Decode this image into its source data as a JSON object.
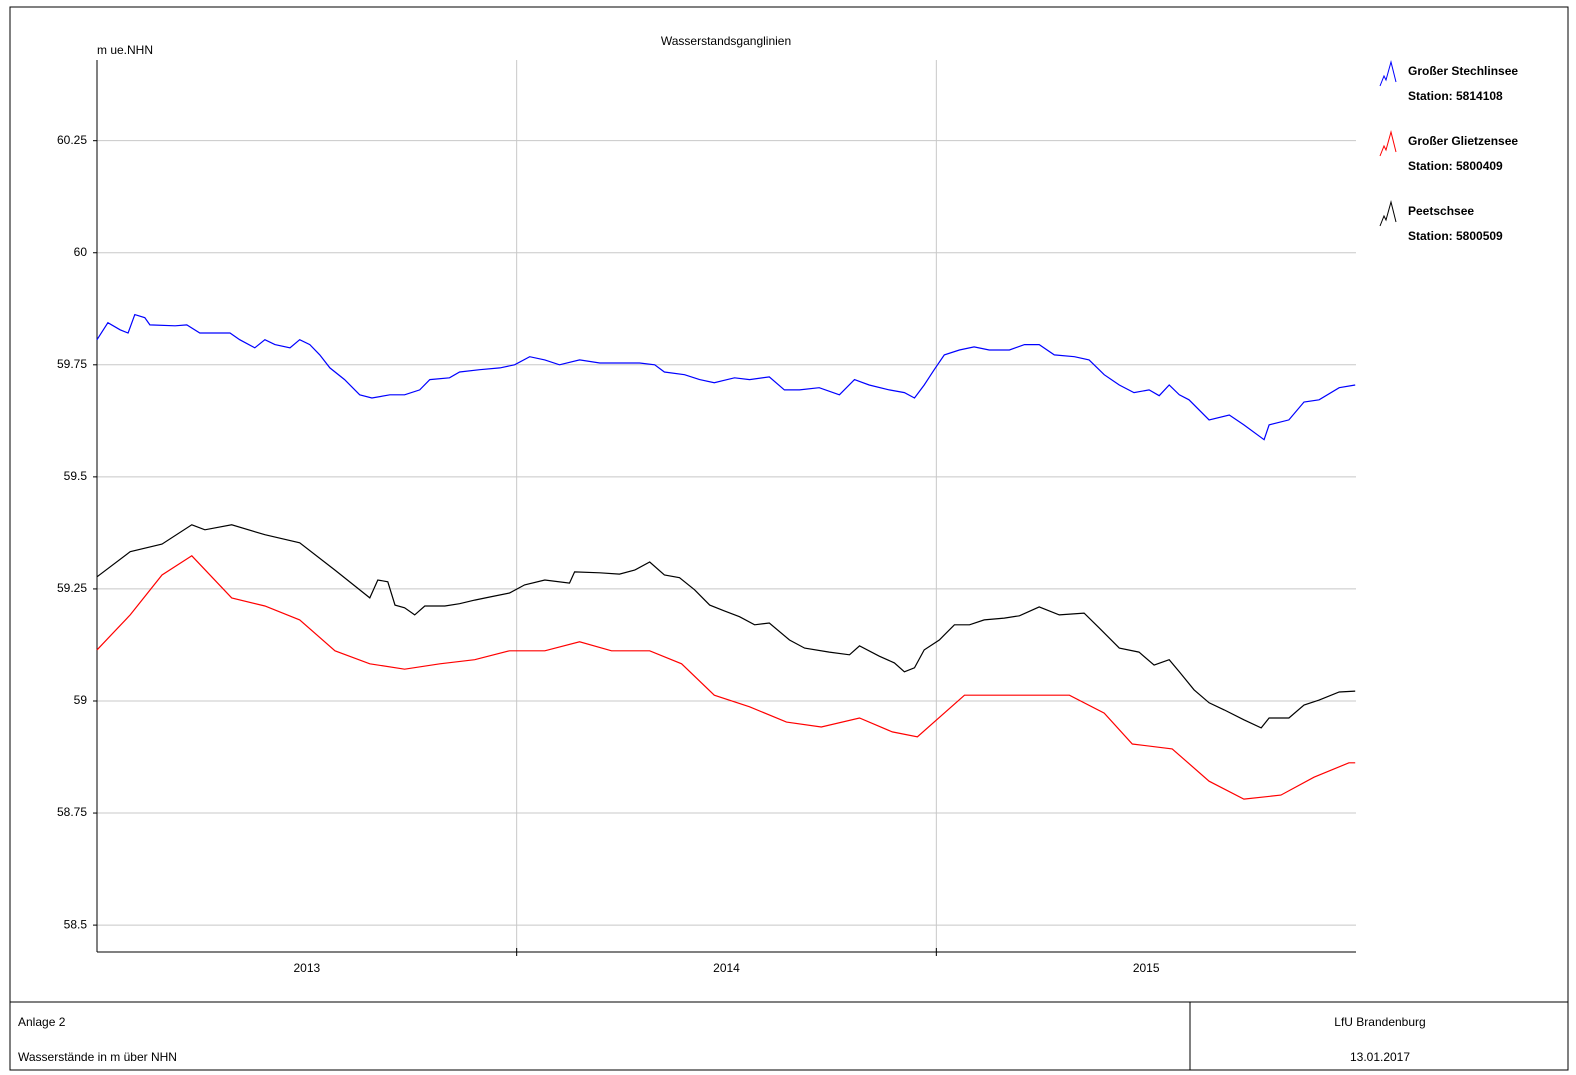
{
  "chart_data": {
    "type": "line",
    "title": "Wasserstandsganglinien",
    "y_label": "m ue.NHN",
    "xlim": [
      2013,
      2016
    ],
    "categories": [
      "2013",
      "2014",
      "2015"
    ],
    "ylim": [
      58.44,
      60.43
    ],
    "yticks": [
      58.5,
      58.75,
      59,
      59.25,
      59.5,
      59.75,
      60,
      60.25
    ],
    "grid": true,
    "series": [
      {
        "name": "Großer Stechlinsee",
        "station": "Station: 5814108",
        "color": "#0000ff",
        "x": [
          2013,
          2013.026,
          2013.055,
          2013.074,
          2013.09,
          2013.114,
          2013.126,
          2013.186,
          2013.214,
          2013.245,
          2013.317,
          2013.34,
          2013.376,
          2013.4,
          2013.424,
          2013.46,
          2013.483,
          2013.507,
          2013.531,
          2013.555,
          2013.59,
          2013.626,
          2013.655,
          2013.698,
          2013.733,
          2013.769,
          2013.793,
          2013.84,
          2013.864,
          2013.912,
          2013.96,
          2013.995,
          2014.031,
          2014.067,
          2014.102,
          2014.15,
          2014.198,
          2014.293,
          2014.329,
          2014.352,
          2014.4,
          2014.436,
          2014.471,
          2014.519,
          2014.555,
          2014.602,
          2014.638,
          2014.674,
          2014.721,
          2014.769,
          2014.805,
          2014.84,
          2014.888,
          2014.924,
          2014.948,
          2014.971,
          2014.995,
          2015.019,
          2015.055,
          2015.09,
          2015.126,
          2015.174,
          2015.21,
          2015.245,
          2015.281,
          2015.329,
          2015.364,
          2015.4,
          2015.436,
          2015.471,
          2015.507,
          2015.531,
          2015.555,
          2015.579,
          2015.602,
          2015.65,
          2015.698,
          2015.733,
          2015.781,
          2015.793,
          2015.84,
          2015.876,
          2015.912,
          2015.96,
          2015.998
        ],
        "values": [
          59.806,
          59.844,
          59.828,
          59.821,
          59.862,
          59.855,
          59.839,
          59.837,
          59.839,
          59.821,
          59.821,
          59.806,
          59.788,
          59.806,
          59.795,
          59.788,
          59.806,
          59.795,
          59.772,
          59.743,
          59.717,
          59.683,
          59.676,
          59.683,
          59.683,
          59.694,
          59.717,
          59.721,
          59.734,
          59.739,
          59.743,
          59.75,
          59.768,
          59.761,
          59.75,
          59.761,
          59.754,
          59.754,
          59.75,
          59.734,
          59.728,
          59.717,
          59.71,
          59.721,
          59.717,
          59.723,
          59.694,
          59.694,
          59.699,
          59.683,
          59.717,
          59.705,
          59.694,
          59.688,
          59.676,
          59.705,
          59.739,
          59.772,
          59.783,
          59.79,
          59.783,
          59.783,
          59.795,
          59.795,
          59.772,
          59.768,
          59.761,
          59.728,
          59.705,
          59.688,
          59.694,
          59.681,
          59.705,
          59.683,
          59.672,
          59.627,
          59.638,
          59.616,
          59.583,
          59.616,
          59.627,
          59.667,
          59.672,
          59.699,
          59.705
        ]
      },
      {
        "name": "Großer Glietzensee",
        "station": "Station: 5800409",
        "color": "#ff0000",
        "x": [
          2013,
          2013.079,
          2013.155,
          2013.226,
          2013.321,
          2013.4,
          2013.483,
          2013.567,
          2013.65,
          2013.733,
          2013.817,
          2013.9,
          2013.983,
          2014.067,
          2014.15,
          2014.226,
          2014.317,
          2014.393,
          2014.471,
          2014.555,
          2014.643,
          2014.726,
          2014.817,
          2014.895,
          2014.955,
          2015.067,
          2015.317,
          2015.4,
          2015.467,
          2015.562,
          2015.65,
          2015.733,
          2015.821,
          2015.9,
          2015.983,
          2015.998
        ],
        "values": [
          59.114,
          59.192,
          59.281,
          59.324,
          59.23,
          59.212,
          59.181,
          59.112,
          59.083,
          59.071,
          59.083,
          59.092,
          59.112,
          59.112,
          59.132,
          59.112,
          59.112,
          59.083,
          59.013,
          58.987,
          58.953,
          58.942,
          58.962,
          58.931,
          58.92,
          59.013,
          59.013,
          58.973,
          58.904,
          58.893,
          58.821,
          58.781,
          58.79,
          58.83,
          58.862,
          58.862
        ]
      },
      {
        "name": "Peetschsee",
        "station": "Station: 5800509",
        "color": "#000000",
        "x": [
          2013,
          2013.079,
          2013.155,
          2013.226,
          2013.257,
          2013.321,
          2013.4,
          2013.483,
          2013.567,
          2013.65,
          2013.669,
          2013.693,
          2013.71,
          2013.733,
          2013.757,
          2013.781,
          2013.829,
          2013.864,
          2013.9,
          2013.936,
          2013.983,
          2014.019,
          2014.067,
          2014.126,
          2014.138,
          2014.198,
          2014.245,
          2014.281,
          2014.317,
          2014.352,
          2014.388,
          2014.424,
          2014.46,
          2014.495,
          2014.531,
          2014.567,
          2014.602,
          2014.65,
          2014.686,
          2014.745,
          2014.793,
          2014.817,
          2014.864,
          2014.9,
          2014.924,
          2014.948,
          2014.971,
          2015.007,
          2015.043,
          2015.079,
          2015.114,
          2015.162,
          2015.198,
          2015.245,
          2015.293,
          2015.352,
          2015.388,
          2015.436,
          2015.483,
          2015.519,
          2015.555,
          2015.579,
          2015.614,
          2015.65,
          2015.686,
          2015.733,
          2015.774,
          2015.793,
          2015.84,
          2015.876,
          2015.912,
          2015.96,
          2015.998
        ],
        "values": [
          59.277,
          59.333,
          59.35,
          59.393,
          59.382,
          59.393,
          59.371,
          59.353,
          59.292,
          59.23,
          59.27,
          59.266,
          59.214,
          59.208,
          59.192,
          59.212,
          59.212,
          59.217,
          59.225,
          59.232,
          59.241,
          59.259,
          59.27,
          59.263,
          59.288,
          59.286,
          59.283,
          59.292,
          59.31,
          59.281,
          59.275,
          59.248,
          59.214,
          59.201,
          59.188,
          59.17,
          59.174,
          59.136,
          59.118,
          59.109,
          59.103,
          59.123,
          59.1,
          59.085,
          59.065,
          59.074,
          59.114,
          59.136,
          59.17,
          59.17,
          59.181,
          59.185,
          59.19,
          59.21,
          59.192,
          59.196,
          59.163,
          59.118,
          59.109,
          59.08,
          59.092,
          59.065,
          59.025,
          58.996,
          58.98,
          58.958,
          58.94,
          58.962,
          58.962,
          58.991,
          59.002,
          59.02,
          59.022
        ]
      }
    ]
  },
  "footer": {
    "left_top": "Anlage 2",
    "left_bottom": "Wasserstände in m über NHN",
    "right_top": "LfU Brandenburg",
    "right_bottom": "13.01.2017"
  }
}
